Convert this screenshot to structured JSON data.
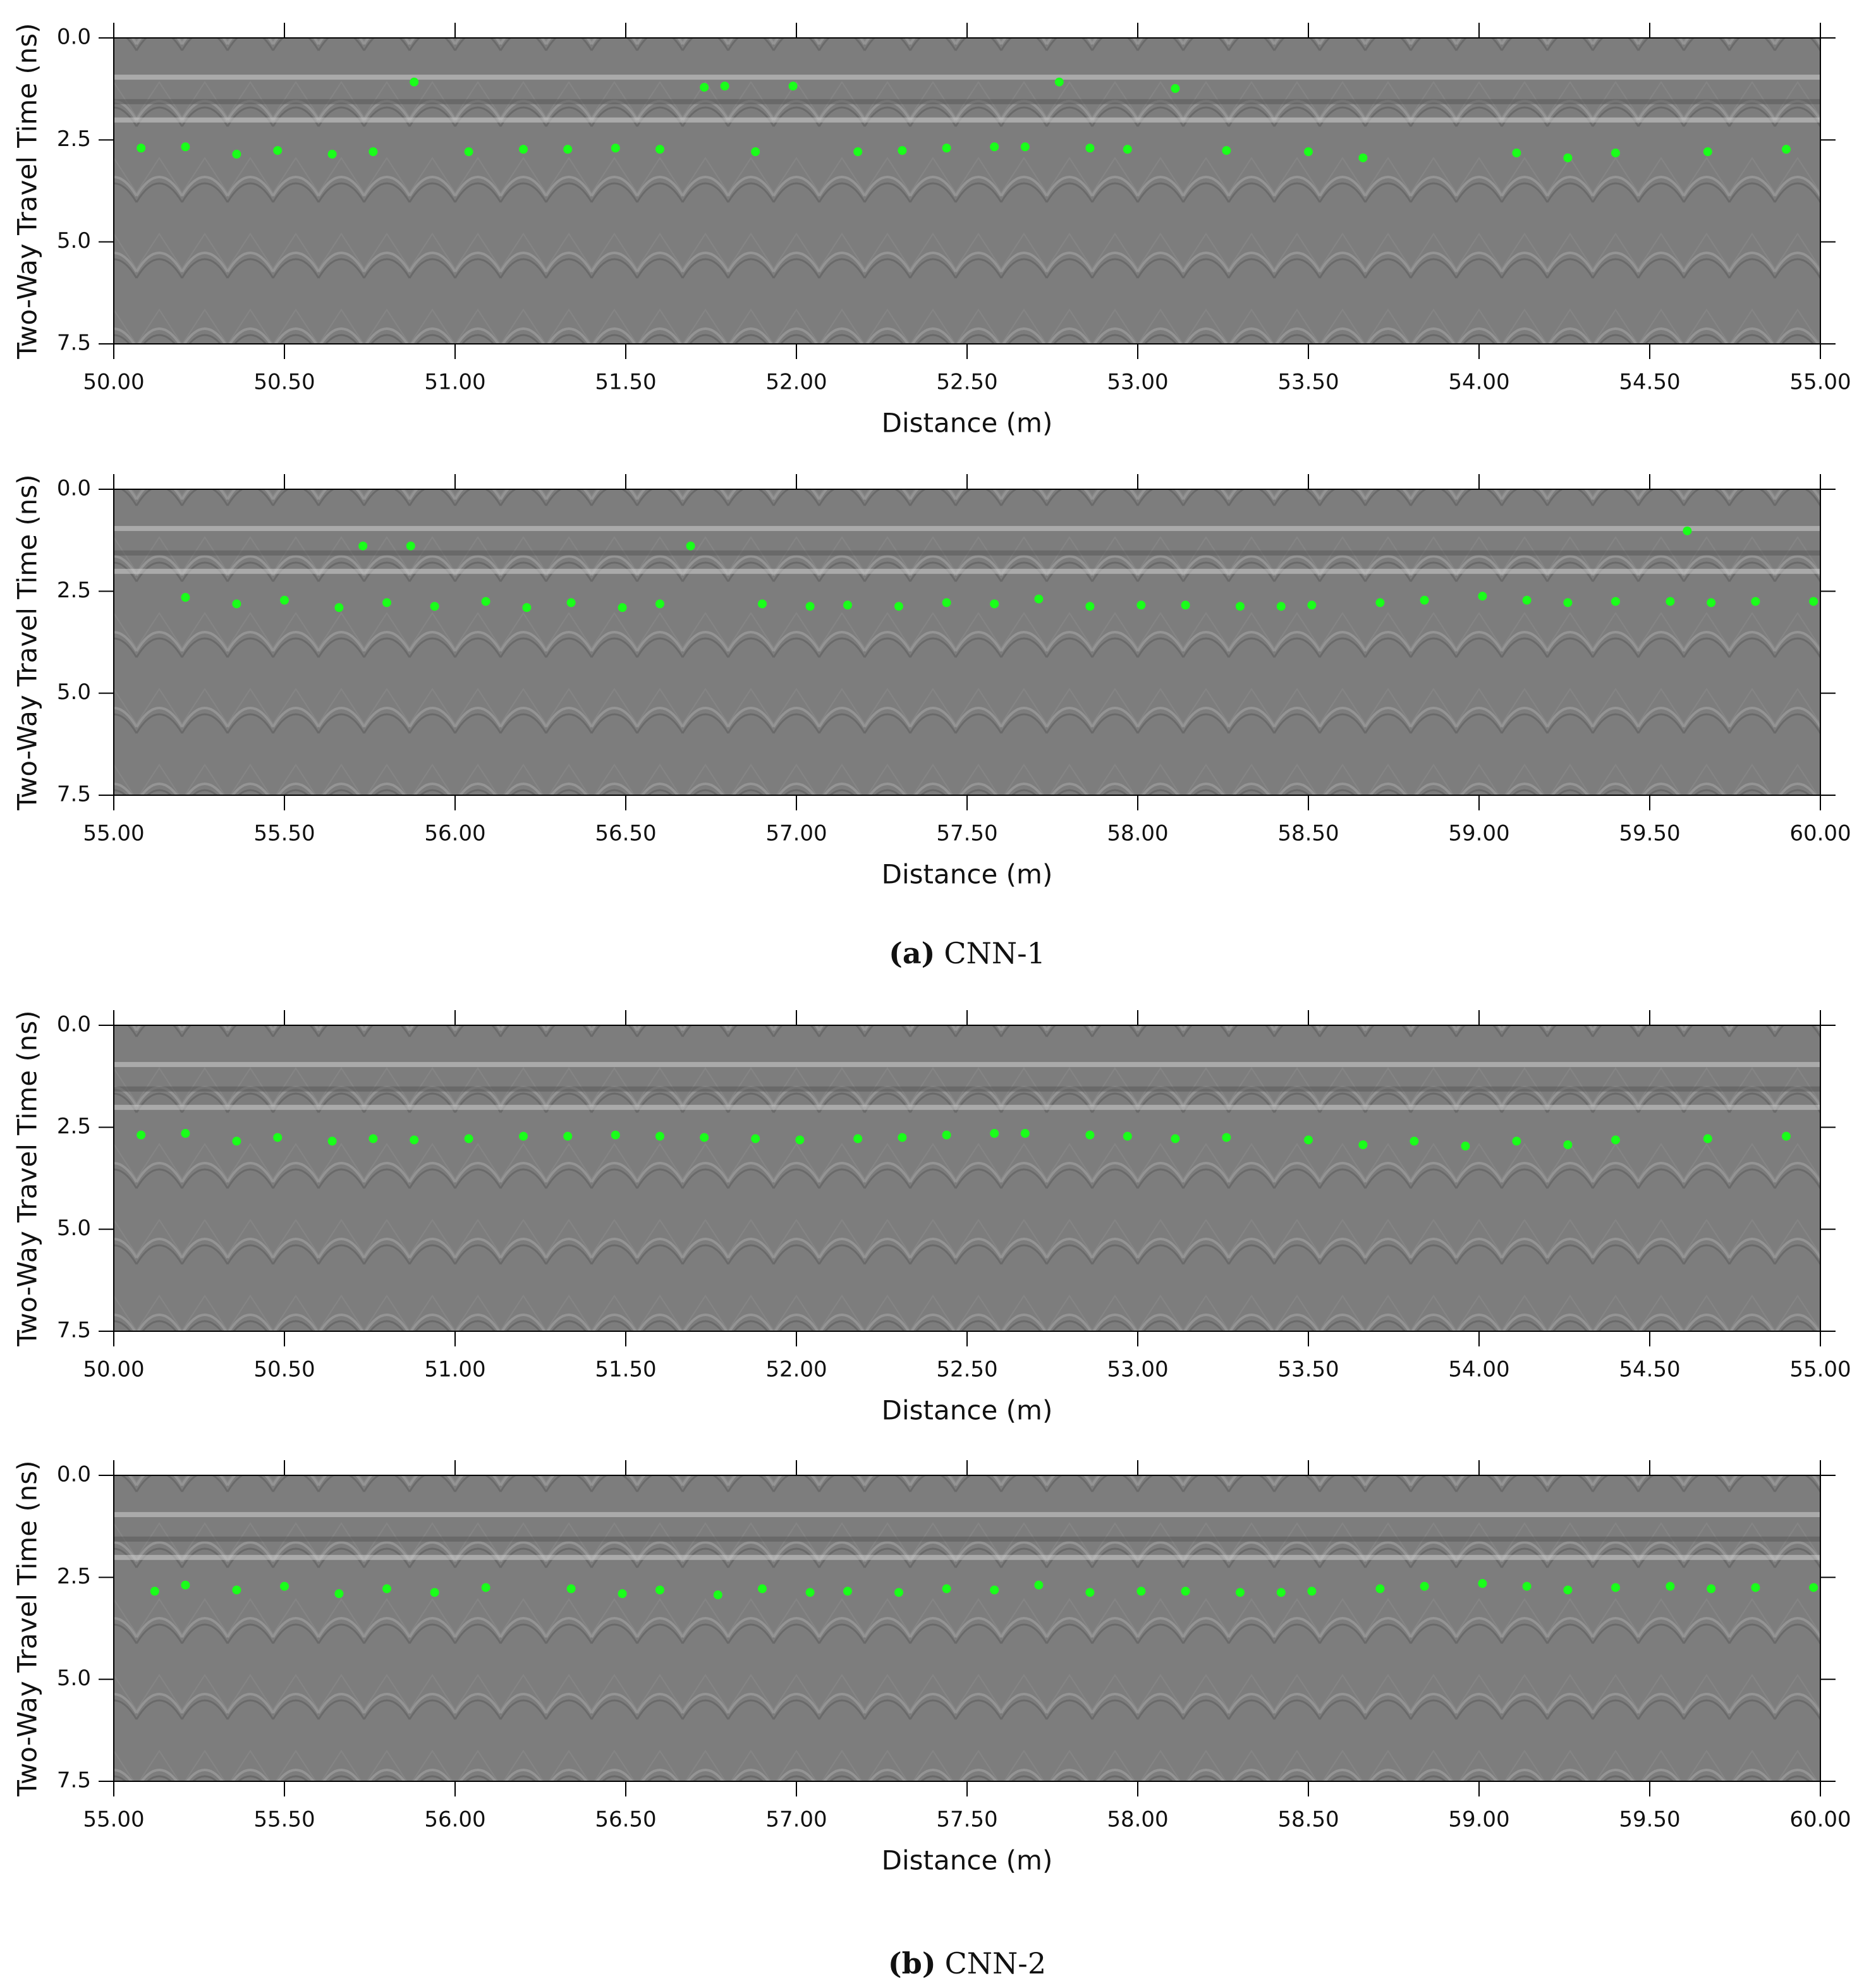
{
  "chart_data": [
    {
      "type": "scatter",
      "x_label": "Distance (m)",
      "y_label": "Two-Way Travel Time (ns)",
      "color": "#1aff1a",
      "xlim": [
        50,
        55
      ],
      "ylim": [
        0,
        7.5
      ],
      "y_inverted": true,
      "xticks": [
        {
          "value": 50,
          "label": "50.00"
        },
        {
          "value": 50.5,
          "label": "50.50"
        },
        {
          "value": 51,
          "label": "51.00"
        },
        {
          "value": 51.5,
          "label": "51.50"
        },
        {
          "value": 52,
          "label": "52.00"
        },
        {
          "value": 52.5,
          "label": "52.50"
        },
        {
          "value": 53,
          "label": "53.00"
        },
        {
          "value": 53.5,
          "label": "53.50"
        },
        {
          "value": 54,
          "label": "54.00"
        },
        {
          "value": 54.5,
          "label": "54.50"
        },
        {
          "value": 55,
          "label": "55.00"
        }
      ],
      "yticks": [
        {
          "value": 0,
          "label": "0.0"
        },
        {
          "value": 2.5,
          "label": "2.5"
        },
        {
          "value": 5,
          "label": "5.0"
        },
        {
          "value": 7.5,
          "label": "7.5"
        }
      ],
      "x": [
        50.88,
        51.73,
        51.79,
        51.99,
        52.77,
        53.11,
        50.08,
        50.21,
        50.36,
        50.48,
        50.64,
        50.76,
        51.04,
        51.2,
        51.33,
        51.47,
        51.6,
        51.88,
        52.18,
        52.31,
        52.44,
        52.58,
        52.67,
        52.86,
        52.97,
        53.26,
        53.5,
        53.66,
        54.11,
        54.26,
        54.4,
        54.67,
        54.9
      ],
      "values": [
        1.08,
        1.21,
        1.18,
        1.18,
        1.08,
        1.24,
        2.7,
        2.67,
        2.85,
        2.76,
        2.85,
        2.79,
        2.79,
        2.73,
        2.73,
        2.7,
        2.73,
        2.79,
        2.79,
        2.76,
        2.7,
        2.67,
        2.67,
        2.7,
        2.73,
        2.76,
        2.79,
        2.94,
        2.82,
        2.94,
        2.82,
        2.79,
        2.73
      ]
    },
    {
      "type": "scatter",
      "x_label": "Distance (m)",
      "y_label": "Two-Way Travel Time (ns)",
      "color": "#1aff1a",
      "xlim": [
        55,
        60
      ],
      "ylim": [
        0,
        7.5
      ],
      "y_inverted": true,
      "xticks": [
        {
          "value": 55,
          "label": "55.00"
        },
        {
          "value": 55.5,
          "label": "55.50"
        },
        {
          "value": 56,
          "label": "56.00"
        },
        {
          "value": 56.5,
          "label": "56.50"
        },
        {
          "value": 57,
          "label": "57.00"
        },
        {
          "value": 57.5,
          "label": "57.50"
        },
        {
          "value": 58,
          "label": "58.00"
        },
        {
          "value": 58.5,
          "label": "58.50"
        },
        {
          "value": 59,
          "label": "59.00"
        },
        {
          "value": 59.5,
          "label": "59.50"
        },
        {
          "value": 60,
          "label": "60.00"
        }
      ],
      "yticks": [
        {
          "value": 0,
          "label": "0.0"
        },
        {
          "value": 2.5,
          "label": "2.5"
        },
        {
          "value": 5,
          "label": "5.0"
        },
        {
          "value": 7.5,
          "label": "7.5"
        }
      ],
      "x": [
        55.73,
        55.87,
        56.69,
        59.61,
        55.21,
        55.36,
        55.5,
        55.66,
        55.8,
        55.94,
        56.09,
        56.21,
        56.34,
        56.49,
        56.6,
        56.9,
        57.04,
        57.15,
        57.3,
        57.44,
        57.58,
        57.71,
        57.86,
        58.01,
        58.14,
        58.3,
        58.42,
        58.51,
        58.71,
        58.84,
        59.01,
        59.14,
        59.26,
        59.4,
        59.56,
        59.68,
        59.81,
        59.98
      ],
      "values": [
        1.39,
        1.39,
        1.39,
        1.02,
        2.65,
        2.81,
        2.72,
        2.9,
        2.78,
        2.87,
        2.75,
        2.9,
        2.78,
        2.9,
        2.81,
        2.81,
        2.87,
        2.84,
        2.87,
        2.78,
        2.81,
        2.69,
        2.87,
        2.84,
        2.84,
        2.87,
        2.87,
        2.84,
        2.78,
        2.72,
        2.62,
        2.72,
        2.78,
        2.75,
        2.75,
        2.78,
        2.75,
        2.75
      ]
    },
    {
      "type": "scatter",
      "x_label": "Distance (m)",
      "y_label": "Two-Way Travel Time (ns)",
      "color": "#1aff1a",
      "xlim": [
        50,
        55
      ],
      "ylim": [
        0,
        7.5
      ],
      "y_inverted": true,
      "xticks": [
        {
          "value": 50,
          "label": "50.00"
        },
        {
          "value": 50.5,
          "label": "50.50"
        },
        {
          "value": 51,
          "label": "51.00"
        },
        {
          "value": 51.5,
          "label": "51.50"
        },
        {
          "value": 52,
          "label": "52.00"
        },
        {
          "value": 52.5,
          "label": "52.50"
        },
        {
          "value": 53,
          "label": "53.00"
        },
        {
          "value": 53.5,
          "label": "53.50"
        },
        {
          "value": 54,
          "label": "54.00"
        },
        {
          "value": 54.5,
          "label": "54.50"
        },
        {
          "value": 55,
          "label": "55.00"
        }
      ],
      "yticks": [
        {
          "value": 0,
          "label": "0.0"
        },
        {
          "value": 2.5,
          "label": "2.5"
        },
        {
          "value": 5,
          "label": "5.0"
        },
        {
          "value": 7.5,
          "label": "7.5"
        }
      ],
      "x": [
        50.08,
        50.21,
        50.36,
        50.48,
        50.64,
        50.76,
        50.88,
        51.04,
        51.2,
        51.33,
        51.47,
        51.6,
        51.73,
        51.88,
        52.01,
        52.18,
        52.31,
        52.44,
        52.58,
        52.67,
        52.86,
        52.97,
        53.11,
        53.26,
        53.5,
        53.66,
        53.81,
        53.96,
        54.11,
        54.26,
        54.4,
        54.67,
        54.9
      ],
      "values": [
        2.69,
        2.65,
        2.84,
        2.75,
        2.84,
        2.78,
        2.81,
        2.78,
        2.72,
        2.72,
        2.69,
        2.72,
        2.75,
        2.78,
        2.81,
        2.78,
        2.75,
        2.69,
        2.65,
        2.65,
        2.69,
        2.72,
        2.78,
        2.75,
        2.81,
        2.93,
        2.84,
        2.96,
        2.84,
        2.93,
        2.81,
        2.78,
        2.72
      ]
    },
    {
      "type": "scatter",
      "x_label": "Distance (m)",
      "y_label": "Two-Way Travel Time (ns)",
      "color": "#1aff1a",
      "xlim": [
        55,
        60
      ],
      "ylim": [
        0,
        7.5
      ],
      "y_inverted": true,
      "xticks": [
        {
          "value": 55,
          "label": "55.00"
        },
        {
          "value": 55.5,
          "label": "55.50"
        },
        {
          "value": 56,
          "label": "56.00"
        },
        {
          "value": 56.5,
          "label": "56.50"
        },
        {
          "value": 57,
          "label": "57.00"
        },
        {
          "value": 57.5,
          "label": "57.50"
        },
        {
          "value": 58,
          "label": "58.00"
        },
        {
          "value": 58.5,
          "label": "58.50"
        },
        {
          "value": 59,
          "label": "59.00"
        },
        {
          "value": 59.5,
          "label": "59.50"
        },
        {
          "value": 60,
          "label": "60.00"
        }
      ],
      "yticks": [
        {
          "value": 0,
          "label": "0.0"
        },
        {
          "value": 2.5,
          "label": "2.5"
        },
        {
          "value": 5,
          "label": "5.0"
        },
        {
          "value": 7.5,
          "label": "7.5"
        }
      ],
      "x": [
        55.12,
        55.21,
        55.36,
        55.5,
        55.66,
        55.8,
        55.94,
        56.09,
        56.34,
        56.49,
        56.6,
        56.77,
        56.9,
        57.04,
        57.15,
        57.3,
        57.44,
        57.58,
        57.71,
        57.86,
        58.01,
        58.14,
        58.3,
        58.42,
        58.51,
        58.71,
        58.84,
        59.01,
        59.14,
        59.26,
        59.4,
        59.56,
        59.68,
        59.81,
        59.98
      ],
      "values": [
        2.84,
        2.69,
        2.81,
        2.72,
        2.9,
        2.78,
        2.87,
        2.75,
        2.78,
        2.9,
        2.81,
        2.93,
        2.78,
        2.87,
        2.84,
        2.87,
        2.78,
        2.81,
        2.69,
        2.87,
        2.84,
        2.84,
        2.87,
        2.87,
        2.84,
        2.78,
        2.72,
        2.65,
        2.72,
        2.81,
        2.75,
        2.72,
        2.78,
        2.75,
        2.75
      ]
    }
  ],
  "captions": [
    {
      "label": "(a)",
      "text": "CNN-1"
    },
    {
      "label": "(b)",
      "text": "CNN-2"
    }
  ]
}
